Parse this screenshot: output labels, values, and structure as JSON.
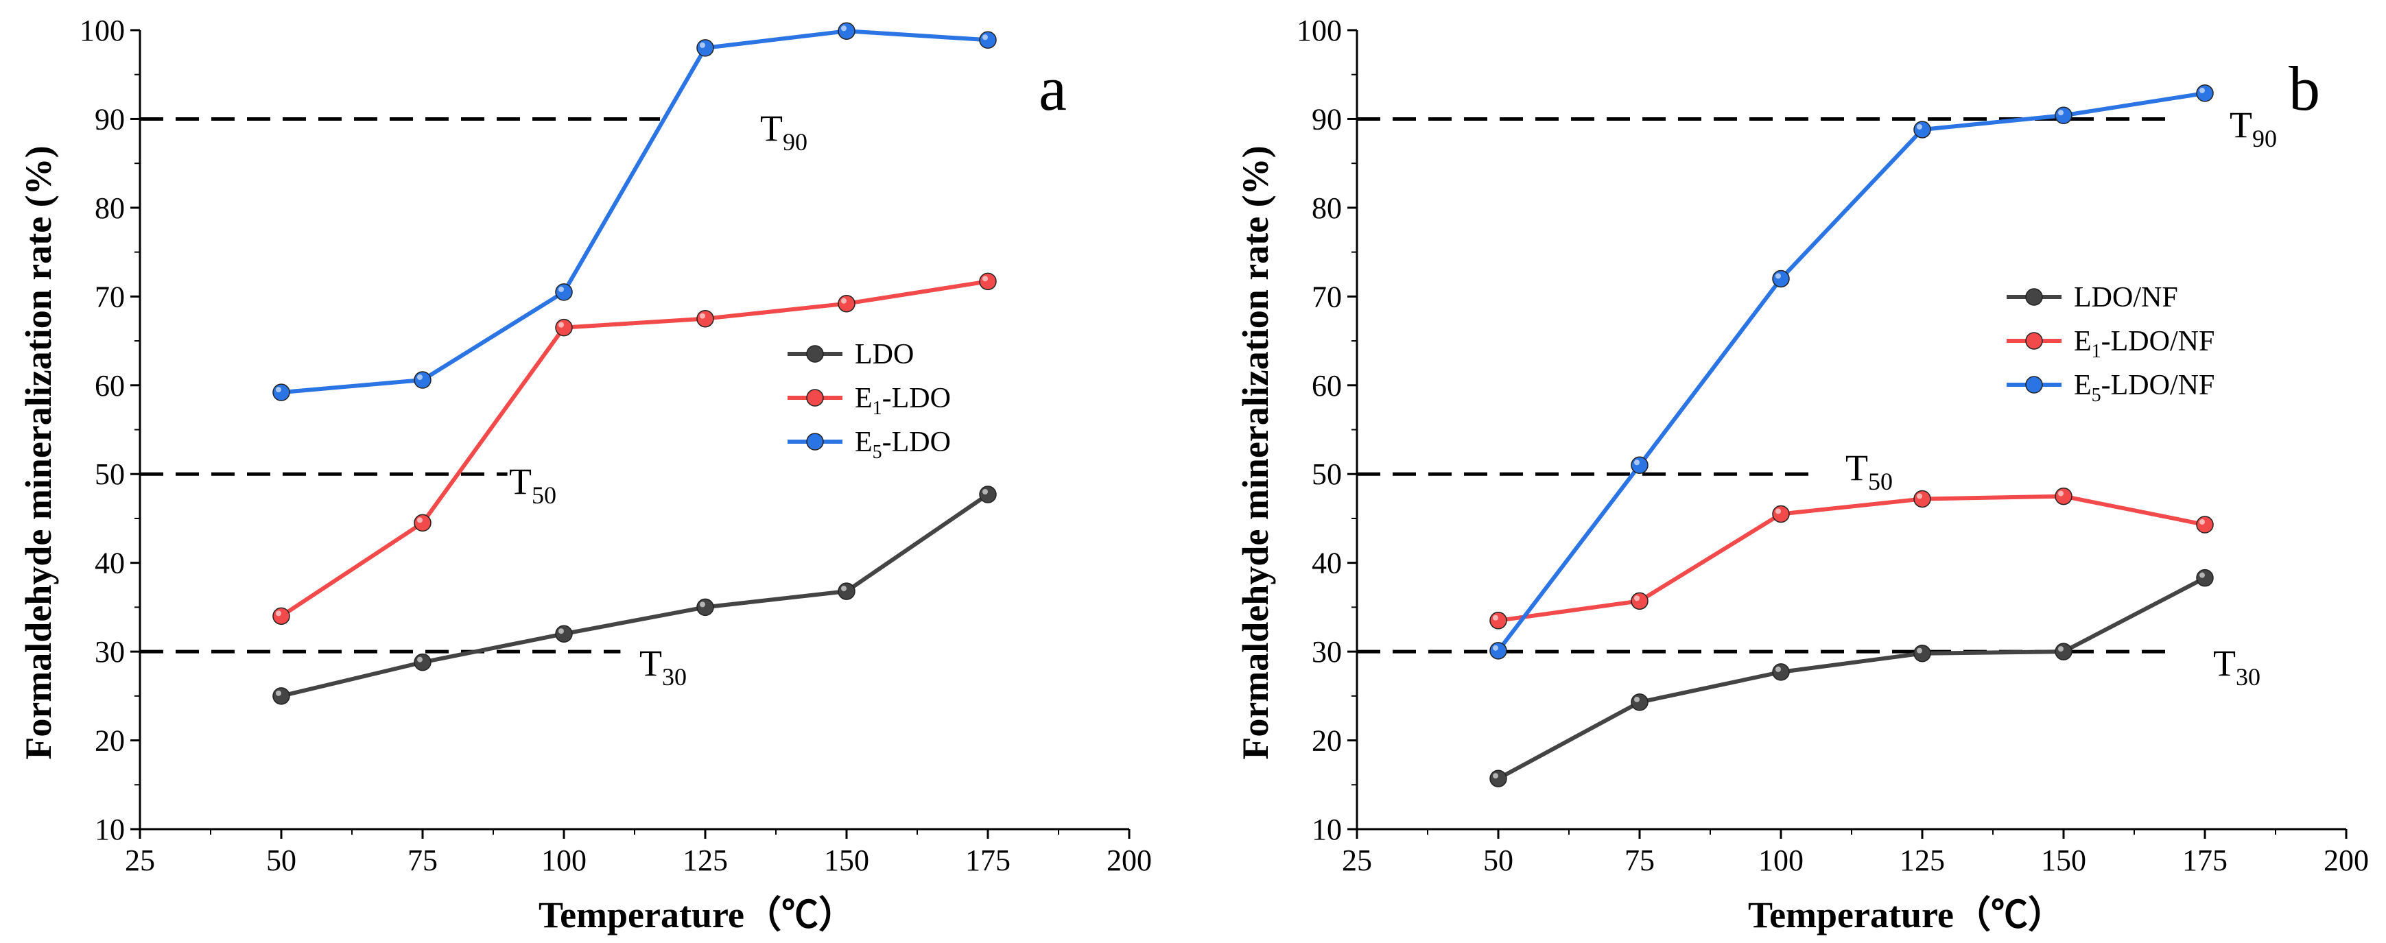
{
  "chart_data": [
    {
      "panel": "a",
      "type": "line",
      "xlabel": "Temperature（℃）",
      "ylabel": "Formaldehyde mineralization rate (%)",
      "xlim": [
        25,
        200
      ],
      "ylim": [
        10,
        100
      ],
      "xticks": [
        25,
        50,
        75,
        100,
        125,
        150,
        175,
        200
      ],
      "yticks": [
        10,
        20,
        30,
        40,
        50,
        60,
        70,
        80,
        90,
        100
      ],
      "x": [
        50,
        75,
        100,
        125,
        150,
        175
      ],
      "series": [
        {
          "name": "LDO",
          "base": "LDO",
          "sub": "",
          "rest": "",
          "color": "#444444",
          "values": [
            25.0,
            28.8,
            32.0,
            35.0,
            36.8,
            47.7
          ]
        },
        {
          "name": "E1-LDO",
          "base": "E",
          "sub": "1",
          "rest": "-LDO",
          "color": "#f24a4a",
          "values": [
            34.0,
            44.5,
            66.5,
            67.5,
            69.2,
            71.7
          ]
        },
        {
          "name": "E5-LDO",
          "base": "E",
          "sub": "5",
          "rest": "-LDO",
          "color": "#2b74e3",
          "values": [
            59.2,
            60.6,
            70.5,
            98.0,
            99.9,
            98.9
          ]
        }
      ],
      "thresholds": [
        {
          "label": "T",
          "sub": "90",
          "y": 90,
          "x_from": 25,
          "x_to": 117
        },
        {
          "label": "T",
          "sub": "50",
          "y": 50,
          "x_from": 25,
          "x_to": 90
        },
        {
          "label": "T",
          "sub": "30",
          "y": 30,
          "x_from": 25,
          "x_to": 110
        }
      ],
      "legend_position": "middle-right"
    },
    {
      "panel": "b",
      "type": "line",
      "xlabel": "Temperature（℃）",
      "ylabel": "Formaldehyde mineralization rate (%)",
      "xlim": [
        25,
        200
      ],
      "ylim": [
        10,
        100
      ],
      "xticks": [
        25,
        50,
        75,
        100,
        125,
        150,
        175,
        200
      ],
      "yticks": [
        10,
        20,
        30,
        40,
        50,
        60,
        70,
        80,
        90,
        100
      ],
      "x": [
        50,
        75,
        100,
        125,
        150,
        175
      ],
      "series": [
        {
          "name": "LDO/NF",
          "base": "LDO/NF",
          "sub": "",
          "rest": "",
          "color": "#444444",
          "values": [
            15.7,
            24.3,
            27.7,
            29.8,
            30.0,
            38.3
          ]
        },
        {
          "name": "E1-LDO/NF",
          "base": "E",
          "sub": "1",
          "rest": "-LDO/NF",
          "color": "#f24a4a",
          "values": [
            33.5,
            35.7,
            45.5,
            47.2,
            47.5,
            44.3
          ]
        },
        {
          "name": "E5-LDO/NF",
          "base": "E",
          "sub": "5",
          "rest": "-LDO/NF",
          "color": "#2b74e3",
          "values": [
            30.1,
            51.0,
            72.0,
            88.8,
            90.4,
            92.9
          ]
        }
      ],
      "thresholds": [
        {
          "label": "T",
          "sub": "90",
          "y": 90,
          "x_from": 25,
          "x_to": 170
        },
        {
          "label": "T",
          "sub": "50",
          "y": 50,
          "x_from": 25,
          "x_to": 107
        },
        {
          "label": "T",
          "sub": "30",
          "y": 30,
          "x_from": 25,
          "x_to": 170
        }
      ],
      "legend_position": "upper-right"
    }
  ]
}
